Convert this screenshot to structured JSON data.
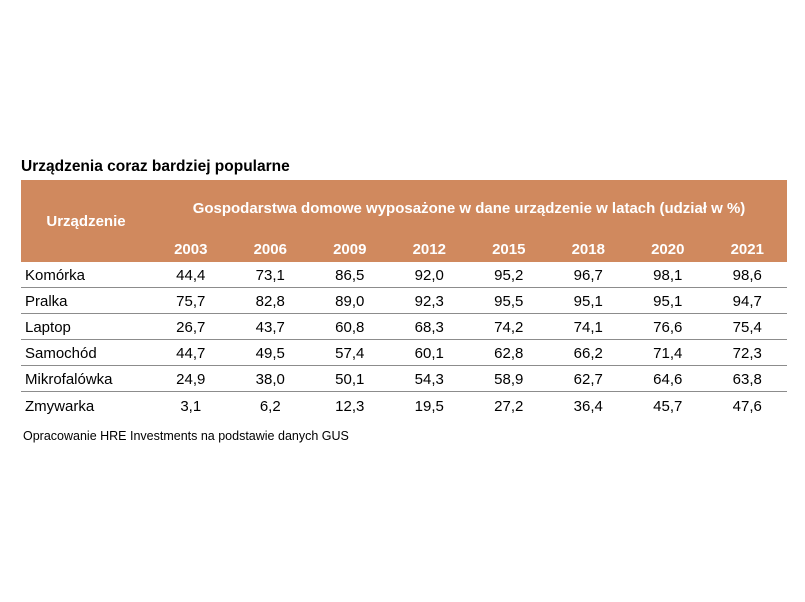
{
  "title": "Urządzenia coraz bardziej popularne",
  "source": "Opracowanie HRE Investments na podstawie danych GUS",
  "colors": {
    "header_bg": "#d0895e",
    "header_text": "#ffffff",
    "row_border": "#8c8c8c"
  },
  "chart_data": {
    "type": "table",
    "title": "Urządzenia coraz bardziej popularne",
    "row_header": "Urządzenie",
    "column_group": "Gospodarstwa domowe wyposażone w dane urządzenie w latach (udział w %)",
    "columns": [
      "2003",
      "2006",
      "2009",
      "2012",
      "2015",
      "2018",
      "2020",
      "2021"
    ],
    "rows": [
      {
        "name": "Komórka",
        "values": [
          "44,4",
          "73,1",
          "86,5",
          "92,0",
          "95,2",
          "96,7",
          "98,1",
          "98,6"
        ]
      },
      {
        "name": "Pralka",
        "values": [
          "75,7",
          "82,8",
          "89,0",
          "92,3",
          "95,5",
          "95,1",
          "95,1",
          "94,7"
        ]
      },
      {
        "name": "Laptop",
        "values": [
          "26,7",
          "43,7",
          "60,8",
          "68,3",
          "74,2",
          "74,1",
          "76,6",
          "75,4"
        ]
      },
      {
        "name": "Samochód",
        "values": [
          "44,7",
          "49,5",
          "57,4",
          "60,1",
          "62,8",
          "66,2",
          "71,4",
          "72,3"
        ]
      },
      {
        "name": "Mikrofalówka",
        "values": [
          "24,9",
          "38,0",
          "50,1",
          "54,3",
          "58,9",
          "62,7",
          "64,6",
          "63,8"
        ]
      },
      {
        "name": "Zmywarka",
        "values": [
          "3,1",
          "6,2",
          "12,3",
          "19,5",
          "27,2",
          "36,4",
          "45,7",
          "47,6"
        ]
      }
    ],
    "source": "Opracowanie HRE Investments na podstawie danych GUS"
  }
}
